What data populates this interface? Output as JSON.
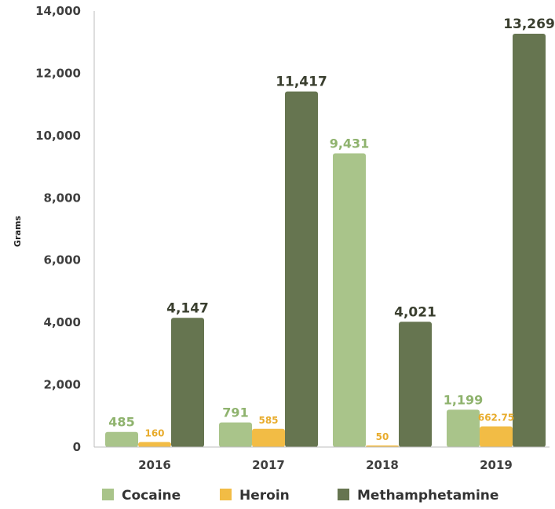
{
  "chart_data": {
    "type": "bar",
    "categories": [
      "2016",
      "2017",
      "2018",
      "2019"
    ],
    "series": [
      {
        "name": "Cocaine",
        "values": [
          485,
          791,
          9431,
          1199
        ],
        "labels": [
          "485",
          "791",
          "9,431",
          "1,199"
        ],
        "color": "#a9c48a",
        "label_color": "#8fb36e"
      },
      {
        "name": "Heroin",
        "values": [
          160,
          585,
          50,
          662.75
        ],
        "labels": [
          "160",
          "585",
          "50",
          "662.75"
        ],
        "color": "#f2bc45",
        "label_color": "#e8ac2d"
      },
      {
        "name": "Methamphetamine",
        "values": [
          4147,
          11417,
          4021,
          13269
        ],
        "labels": [
          "4,147",
          "11,417",
          "4,021",
          "13,269"
        ],
        "color": "#667550",
        "label_color": "#3a3f2f"
      }
    ],
    "ylabel": "Grams",
    "ylim": [
      0,
      14000
    ],
    "yticks": [
      "0",
      "2,000",
      "4,000",
      "6,000",
      "8,000",
      "10,000",
      "12,000",
      "14,000"
    ],
    "legend_position": "bottom",
    "grid": false
  }
}
